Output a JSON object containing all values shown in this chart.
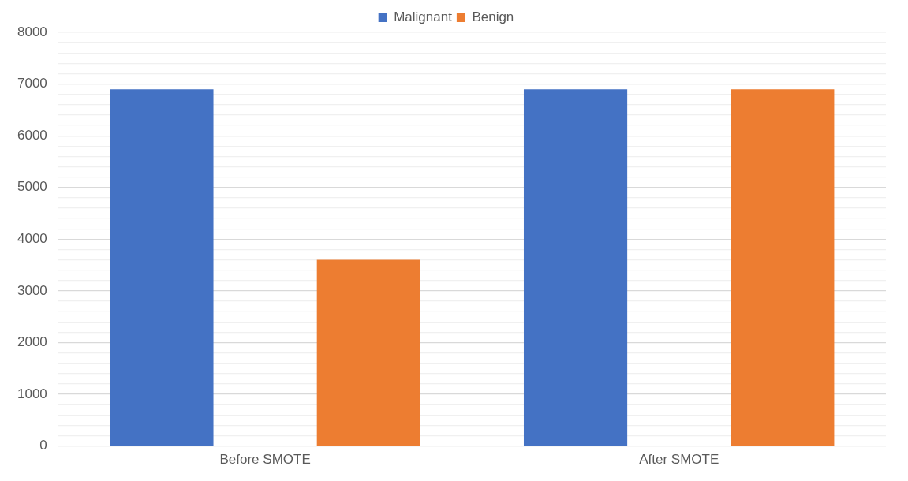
{
  "chart_data": {
    "type": "bar",
    "categories": [
      "Before SMOTE",
      "After SMOTE"
    ],
    "series": [
      {
        "name": "Malignant",
        "color": "#4472c4",
        "values": [
          6900,
          6900
        ]
      },
      {
        "name": "Benign",
        "color": "#ed7d31",
        "values": [
          3600,
          6900
        ]
      }
    ],
    "ylim": [
      0,
      8000
    ],
    "yticks": [
      0,
      {
        "value": 200,
        "label": null
      },
      {
        "value": 400,
        "label": null
      },
      {
        "value": 600,
        "label": null
      },
      {
        "value": 800,
        "label": null
      },
      1000,
      {
        "value": 1200,
        "label": null
      },
      {
        "value": 1400,
        "label": null
      },
      {
        "value": 1600,
        "label": null
      },
      {
        "value": 1800,
        "label": null
      },
      2000,
      {
        "value": 2200,
        "label": null
      },
      {
        "value": 2400,
        "label": null
      },
      {
        "value": 2600,
        "label": null
      },
      {
        "value": 2800,
        "label": null
      },
      3000,
      {
        "value": 3200,
        "label": null
      },
      {
        "value": 3400,
        "label": null
      },
      {
        "value": 3600,
        "label": null
      },
      {
        "value": 3800,
        "label": null
      },
      4000,
      {
        "value": 4200,
        "label": null
      },
      {
        "value": 4400,
        "label": null
      },
      {
        "value": 4600,
        "label": null
      },
      {
        "value": 4800,
        "label": null
      },
      5000,
      {
        "value": 5200,
        "label": null
      },
      {
        "value": 5400,
        "label": null
      },
      {
        "value": 5600,
        "label": null
      },
      {
        "value": 5800,
        "label": null
      },
      6000,
      {
        "value": 6200,
        "label": null
      },
      {
        "value": 6400,
        "label": null
      },
      {
        "value": 6600,
        "label": null
      },
      {
        "value": 6800,
        "label": null
      },
      7000,
      {
        "value": 7200,
        "label": null
      },
      {
        "value": 7400,
        "label": null
      },
      {
        "value": 7600,
        "label": null
      },
      {
        "value": 7800,
        "label": null
      },
      8000
    ],
    "grid": "y",
    "legend": "top"
  }
}
